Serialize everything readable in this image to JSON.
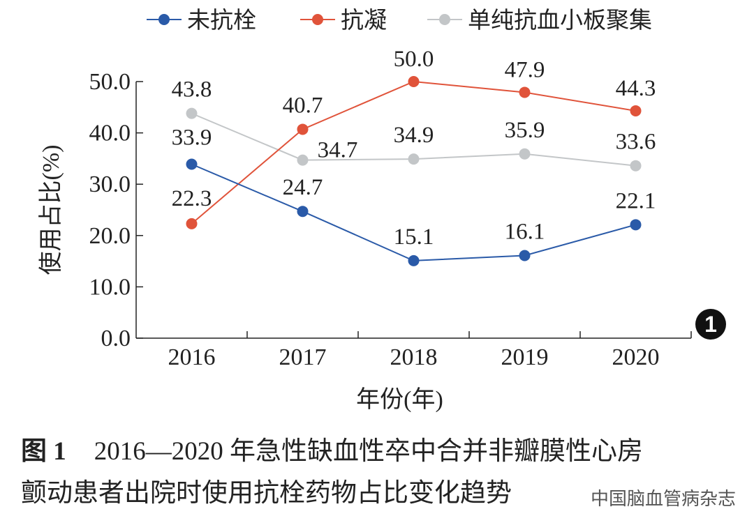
{
  "chart_data": {
    "type": "line",
    "categories": [
      "2016",
      "2017",
      "2018",
      "2019",
      "2020"
    ],
    "series": [
      {
        "name": "未抗栓",
        "values": [
          33.9,
          24.7,
          15.1,
          16.1,
          22.1
        ],
        "color": "#2a5aa8"
      },
      {
        "name": "抗凝",
        "values": [
          22.3,
          40.7,
          50.0,
          47.9,
          44.3
        ],
        "color": "#e0533a"
      },
      {
        "name": "单纯抗血小板聚集",
        "values": [
          43.8,
          34.7,
          34.9,
          35.9,
          33.6
        ],
        "color": "#c3c6c8"
      }
    ],
    "ylabel": "使用占比(%)",
    "xlabel": "年份(年)",
    "ylim": [
      0,
      50
    ],
    "yticks": [
      "0.0",
      "10.0",
      "20.0",
      "30.0",
      "40.0",
      "50.0"
    ],
    "legend_position": "top",
    "grid": false
  },
  "caption": {
    "tag": "图 1",
    "line1": "2016—2020 年急性缺血性卒中合并非瓣膜性心房",
    "line2": "颤动患者出院时使用抗栓药物占比变化趋势"
  },
  "badge": "1",
  "watermark": "中国脑血管病杂志"
}
